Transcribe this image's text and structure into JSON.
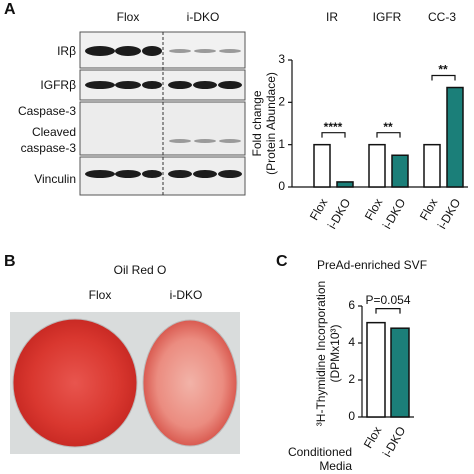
{
  "panels": {
    "a": "A",
    "b": "B",
    "c": "C"
  },
  "blot": {
    "column_labels": [
      "Flox",
      "i-DKO"
    ],
    "row_labels": [
      "IRβ",
      "IGFRβ",
      "Caspase-3",
      "Cleaved",
      "caspase-3",
      "Vinculin"
    ]
  },
  "oil_red": {
    "title": "Oil Red O",
    "labels": [
      "Flox",
      "i-DKO"
    ]
  },
  "chart_data": [
    {
      "type": "bar",
      "y_label": [
        "Fold change",
        "(Protein Abundace)"
      ],
      "categories": [
        "IR",
        "IGFR",
        "CC-3"
      ],
      "series": [
        {
          "name": "Flox",
          "color": "#ffffff",
          "values": [
            1.0,
            1.0,
            1.0
          ]
        },
        {
          "name": "i-DKO",
          "color": "#1b7f79",
          "values": [
            0.12,
            0.75,
            2.35
          ]
        }
      ],
      "significance": [
        "****",
        "**",
        "**"
      ],
      "ylim": [
        0,
        3
      ],
      "yticks": [
        0,
        1,
        2,
        3
      ]
    },
    {
      "type": "bar",
      "title": "PreAd-enriched SVF",
      "y_label": [
        "³H-Thymidine Incorporation",
        "(DPMx10³)"
      ],
      "categories": [
        "Flox",
        "i-DKO"
      ],
      "values": [
        5.1,
        4.8
      ],
      "colors": [
        "#ffffff",
        "#1b7f79"
      ],
      "annotation": "P=0.054",
      "x_label": [
        "Conditioned",
        "Media"
      ],
      "ylim": [
        0,
        6
      ],
      "yticks": [
        0,
        2,
        4,
        6
      ]
    }
  ]
}
